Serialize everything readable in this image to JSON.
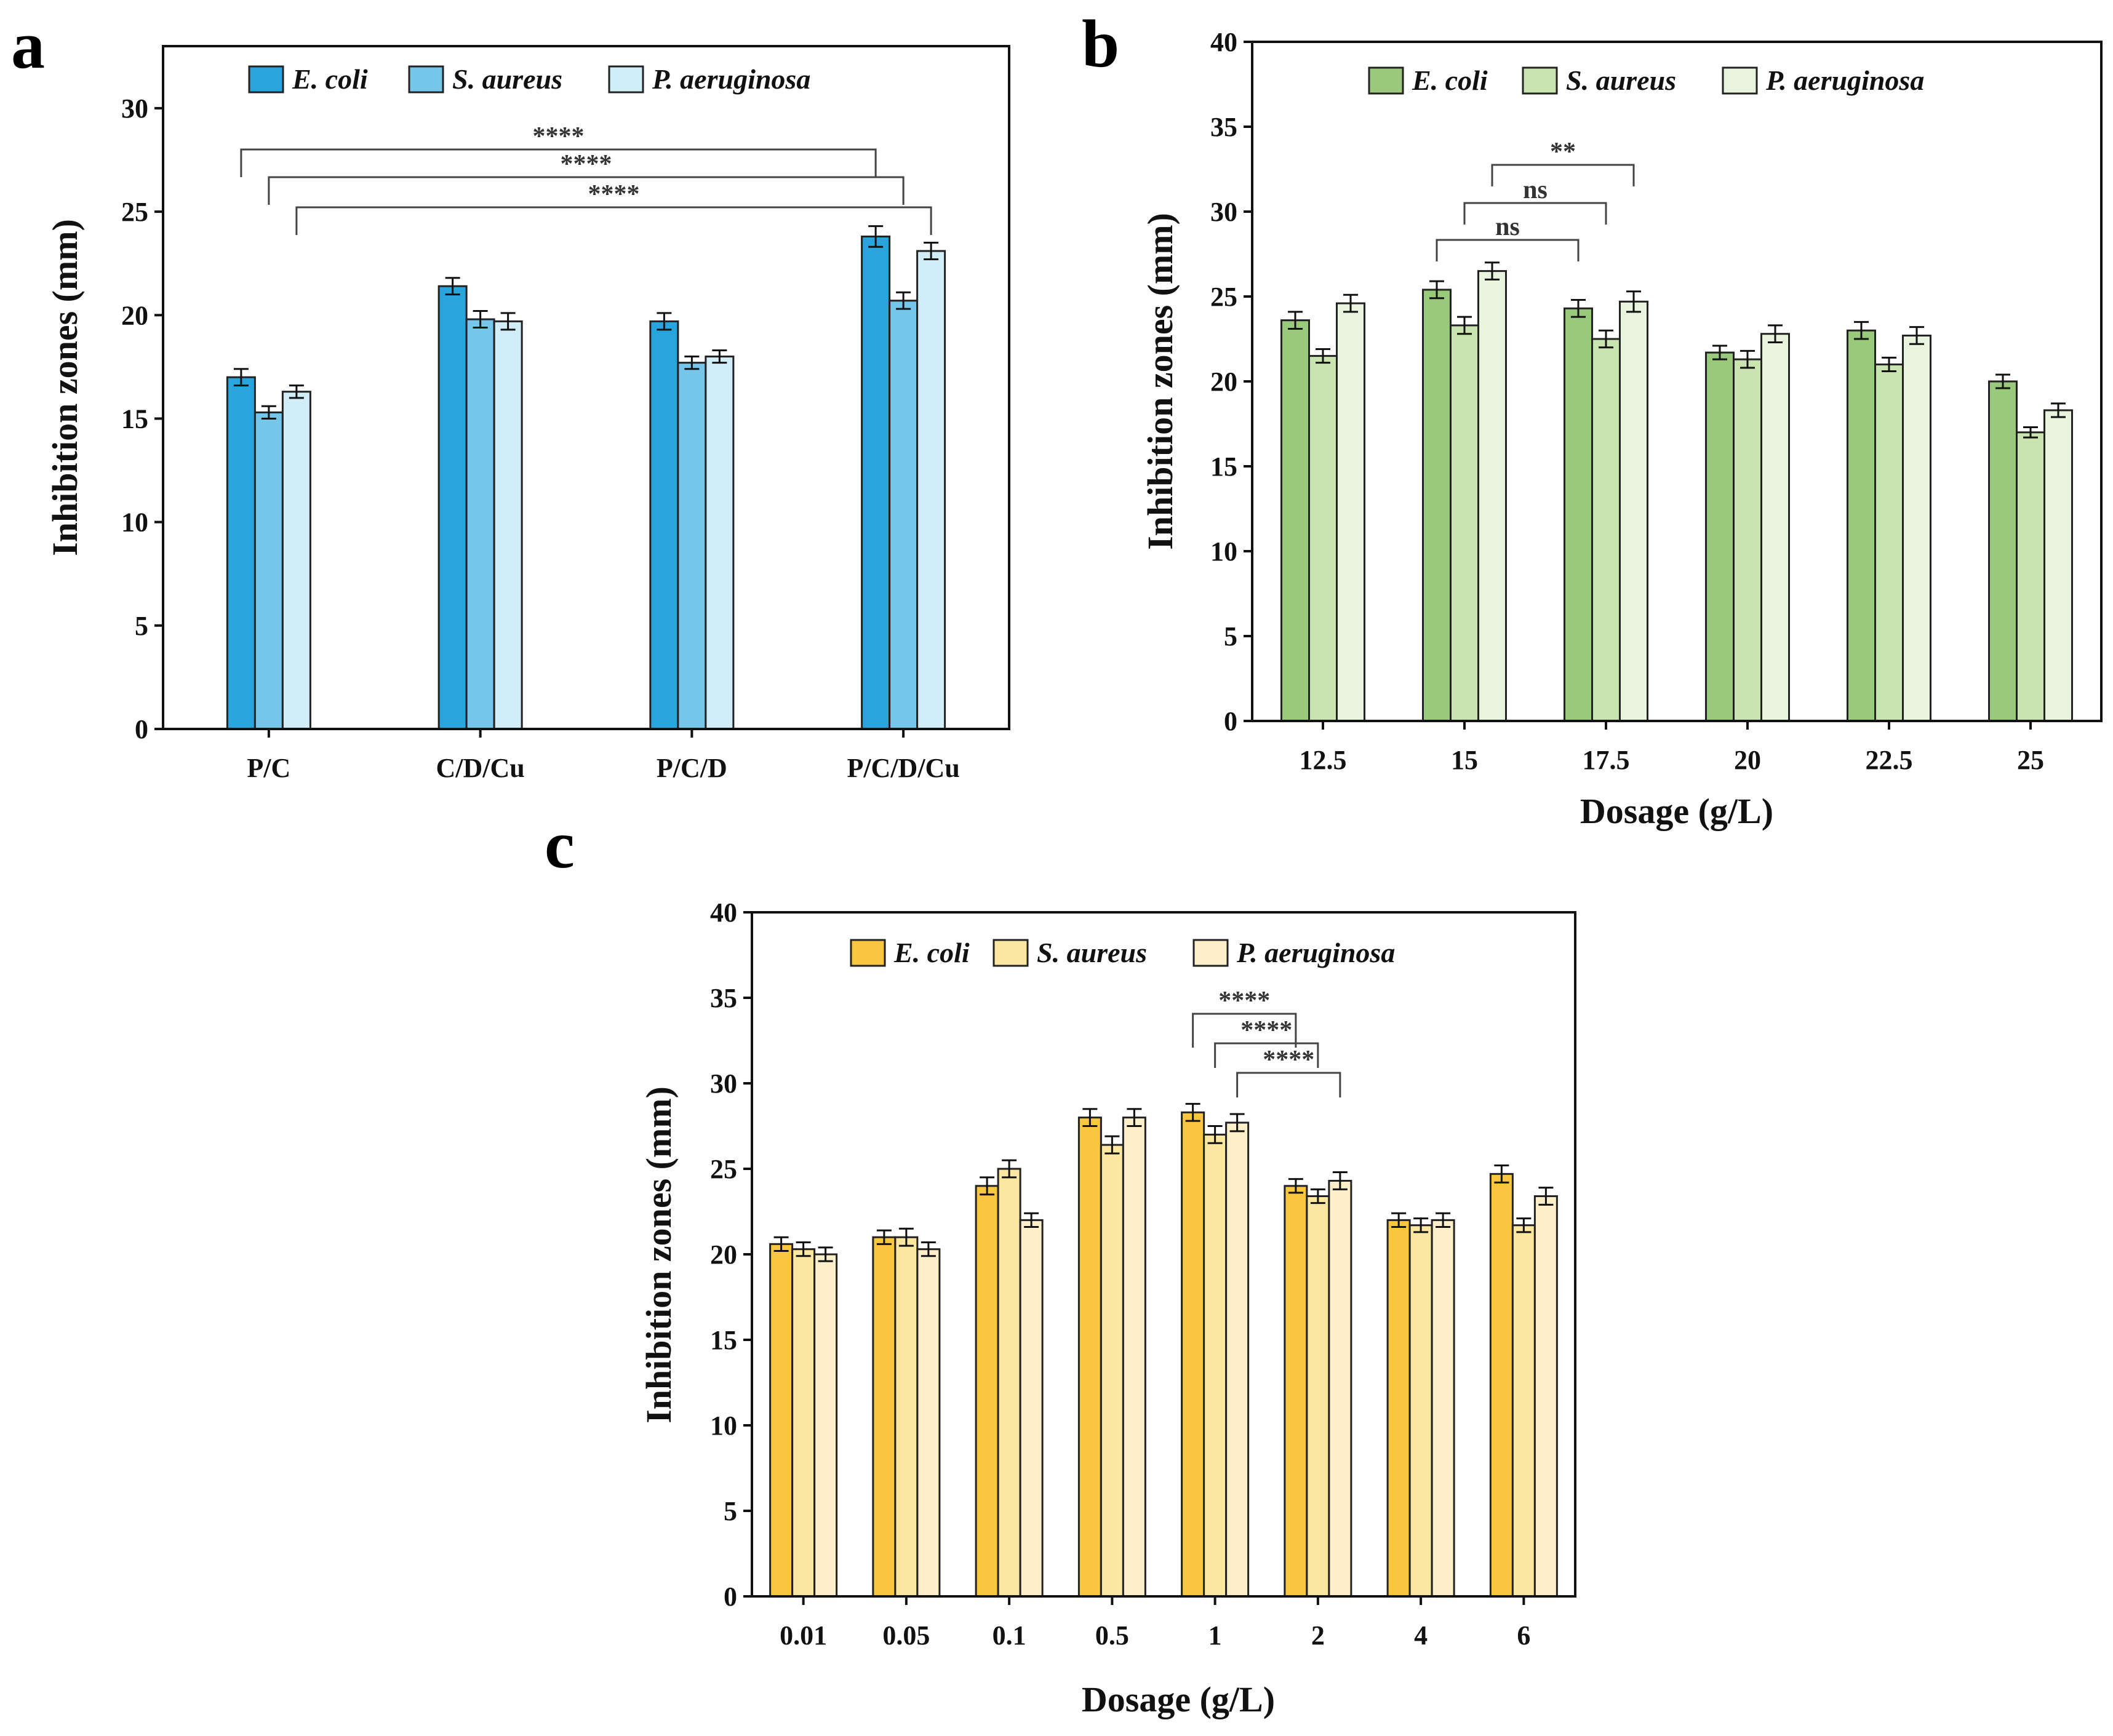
{
  "chart_data": [
    {
      "type": "bar",
      "panel": "a",
      "title": "",
      "xlabel": "",
      "ylabel": "Inhibition zones (mm)",
      "ylim": [
        0,
        33
      ],
      "yticks": [
        0,
        5,
        10,
        15,
        20,
        25,
        30
      ],
      "categories": [
        "P/C",
        "C/D/Cu",
        "P/C/D",
        "P/C/D/Cu"
      ],
      "series": [
        {
          "name": "E. coli",
          "color": "#27a5dc",
          "values": [
            17.0,
            21.4,
            19.7,
            23.8
          ],
          "errors": [
            0.4,
            0.4,
            0.4,
            0.5
          ]
        },
        {
          "name": "S. aureus",
          "color": "#76c6ea",
          "values": [
            15.3,
            19.8,
            17.7,
            20.7
          ],
          "errors": [
            0.3,
            0.4,
            0.3,
            0.4
          ]
        },
        {
          "name": "P. aeruginosa",
          "color": "#d1edf8",
          "values": [
            16.3,
            19.7,
            18.0,
            23.1
          ],
          "errors": [
            0.3,
            0.4,
            0.3,
            0.4
          ]
        }
      ],
      "legend_position": "top-center",
      "significance": [
        {
          "label": "****",
          "from": [
            "P/C",
            "E. coli"
          ],
          "to": [
            "P/C/D/Cu",
            "E. coli"
          ]
        },
        {
          "label": "****",
          "from": [
            "P/C",
            "S. aureus"
          ],
          "to": [
            "P/C/D/Cu",
            "S. aureus"
          ]
        },
        {
          "label": "****",
          "from": [
            "P/C",
            "P. aeruginosa"
          ],
          "to": [
            "P/C/D/Cu",
            "P. aeruginosa"
          ]
        }
      ]
    },
    {
      "type": "bar",
      "panel": "b",
      "title": "",
      "xlabel": "Dosage (g/L)",
      "ylabel": "Inhibition zones (mm)",
      "ylim": [
        0,
        40
      ],
      "yticks": [
        0,
        5,
        10,
        15,
        20,
        25,
        30,
        35,
        40
      ],
      "categories": [
        "12.5",
        "15",
        "17.5",
        "20",
        "22.5",
        "25"
      ],
      "series": [
        {
          "name": "E. coli",
          "color": "#99c97b",
          "values": [
            23.6,
            25.4,
            24.3,
            21.7,
            23.0,
            20.0
          ],
          "errors": [
            0.5,
            0.5,
            0.5,
            0.4,
            0.5,
            0.4
          ]
        },
        {
          "name": "S. aureus",
          "color": "#c9e4b1",
          "values": [
            21.5,
            23.3,
            22.5,
            21.3,
            21.0,
            17.0
          ],
          "errors": [
            0.4,
            0.5,
            0.5,
            0.5,
            0.4,
            0.3
          ]
        },
        {
          "name": "P. aeruginosa",
          "color": "#e9f4de",
          "values": [
            24.6,
            26.5,
            24.7,
            22.8,
            22.7,
            18.3
          ],
          "errors": [
            0.5,
            0.5,
            0.6,
            0.5,
            0.5,
            0.4
          ]
        }
      ],
      "legend_position": "top-center",
      "significance": [
        {
          "label": "ns",
          "from": [
            "15",
            "E. coli"
          ],
          "to": [
            "17.5",
            "E. coli"
          ]
        },
        {
          "label": "ns",
          "from": [
            "15",
            "S. aureus"
          ],
          "to": [
            "17.5",
            "S. aureus"
          ]
        },
        {
          "label": "**",
          "from": [
            "15",
            "P. aeruginosa"
          ],
          "to": [
            "17.5",
            "P. aeruginosa"
          ]
        }
      ]
    },
    {
      "type": "bar",
      "panel": "c",
      "title": "",
      "xlabel": "Dosage (g/L)",
      "ylabel": "Inhibition zones (mm)",
      "ylim": [
        0,
        40
      ],
      "yticks": [
        0,
        5,
        10,
        15,
        20,
        25,
        30,
        35,
        40
      ],
      "categories": [
        "0.01",
        "0.05",
        "0.1",
        "0.5",
        "1",
        "2",
        "4",
        "6"
      ],
      "series": [
        {
          "name": "E. coli",
          "color": "#f8c63f",
          "values": [
            20.6,
            21.0,
            24.0,
            28.0,
            28.3,
            24.0,
            22.0,
            24.7
          ],
          "errors": [
            0.4,
            0.4,
            0.5,
            0.5,
            0.5,
            0.4,
            0.4,
            0.5
          ]
        },
        {
          "name": "S. aureus",
          "color": "#fbe7a0",
          "values": [
            20.3,
            21.0,
            25.0,
            26.4,
            27.0,
            23.4,
            21.7,
            21.7
          ],
          "errors": [
            0.4,
            0.5,
            0.5,
            0.5,
            0.5,
            0.4,
            0.4,
            0.4
          ]
        },
        {
          "name": "P. aeruginosa",
          "color": "#fdefc9",
          "values": [
            20.0,
            20.3,
            22.0,
            28.0,
            27.7,
            24.3,
            22.0,
            23.4
          ],
          "errors": [
            0.4,
            0.4,
            0.4,
            0.5,
            0.5,
            0.5,
            0.4,
            0.5
          ]
        }
      ],
      "legend_position": "top-center",
      "significance": [
        {
          "label": "****",
          "from": [
            "1",
            "E. coli"
          ],
          "to": [
            "2",
            "E. coli"
          ]
        },
        {
          "label": "****",
          "from": [
            "1",
            "S. aureus"
          ],
          "to": [
            "2",
            "S. aureus"
          ]
        },
        {
          "label": "****",
          "from": [
            "1",
            "P. aeruginosa"
          ],
          "to": [
            "2",
            "P. aeruginosa"
          ]
        }
      ]
    }
  ]
}
